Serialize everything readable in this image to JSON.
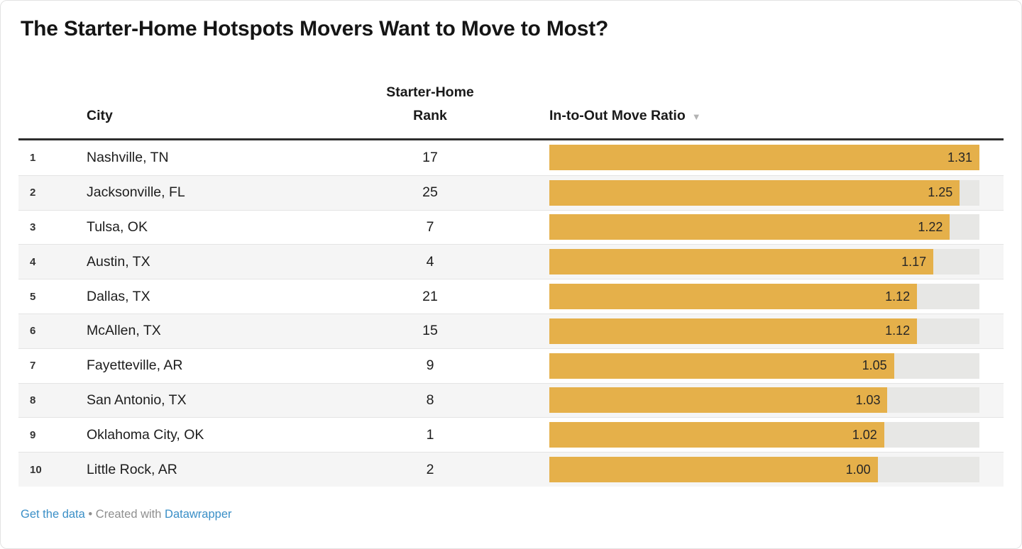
{
  "page": {
    "title": "The Starter-Home Hotspots Movers Want to Move to Most?"
  },
  "table": {
    "columns": {
      "city": "City",
      "starter_home_rank": "Starter-Home Rank",
      "ratio": "In-to-Out Move Ratio",
      "sort_icon": "▼"
    },
    "rows": [
      {
        "index": "1",
        "city": "Nashville, TN",
        "starter_home_rank": "17",
        "ratio": 1.31,
        "ratio_label": "1.31"
      },
      {
        "index": "2",
        "city": "Jacksonville, FL",
        "starter_home_rank": "25",
        "ratio": 1.25,
        "ratio_label": "1.25"
      },
      {
        "index": "3",
        "city": "Tulsa, OK",
        "starter_home_rank": "7",
        "ratio": 1.22,
        "ratio_label": "1.22"
      },
      {
        "index": "4",
        "city": "Austin, TX",
        "starter_home_rank": "4",
        "ratio": 1.17,
        "ratio_label": "1.17"
      },
      {
        "index": "5",
        "city": "Dallas, TX",
        "starter_home_rank": "21",
        "ratio": 1.12,
        "ratio_label": "1.12"
      },
      {
        "index": "6",
        "city": "McAllen, TX",
        "starter_home_rank": "15",
        "ratio": 1.12,
        "ratio_label": "1.12"
      },
      {
        "index": "7",
        "city": "Fayetteville, AR",
        "starter_home_rank": "9",
        "ratio": 1.05,
        "ratio_label": "1.05"
      },
      {
        "index": "8",
        "city": "San Antonio, TX",
        "starter_home_rank": "8",
        "ratio": 1.03,
        "ratio_label": "1.03"
      },
      {
        "index": "9",
        "city": "Oklahoma City, OK",
        "starter_home_rank": "1",
        "ratio": 1.02,
        "ratio_label": "1.02"
      },
      {
        "index": "10",
        "city": "Little Rock, AR",
        "starter_home_rank": "2",
        "ratio": 1.0,
        "ratio_label": "1.00"
      }
    ]
  },
  "chart_data": {
    "type": "bar",
    "orientation": "horizontal",
    "title": "The Starter-Home Hotspots Movers Want to Move to Most?",
    "categories": [
      "Nashville, TN",
      "Jacksonville, FL",
      "Tulsa, OK",
      "Austin, TX",
      "Dallas, TX",
      "McAllen, TX",
      "Fayetteville, AR",
      "San Antonio, TX",
      "Oklahoma City, OK",
      "Little Rock, AR"
    ],
    "series": [
      {
        "name": "Starter-Home Rank",
        "values": [
          17,
          25,
          7,
          4,
          21,
          15,
          9,
          8,
          1,
          2
        ]
      },
      {
        "name": "In-to-Out Move Ratio",
        "values": [
          1.31,
          1.25,
          1.22,
          1.17,
          1.12,
          1.12,
          1.05,
          1.03,
          1.02,
          1.0
        ]
      }
    ],
    "xlim": [
      0,
      1.31
    ],
    "sorted_by": "In-to-Out Move Ratio descending",
    "grid": false,
    "legend": "none"
  },
  "colors": {
    "bar": "#e5b04a",
    "track": "#e7e7e5",
    "alt_row": "#f5f5f5",
    "link_blue": "#3a8fc7",
    "footer_gray": "#8f8f8f"
  },
  "footer": {
    "get_data_label": "Get the data",
    "separator": "•",
    "created_with_label": "Created with",
    "datawrapper_label": "Datawrapper"
  }
}
